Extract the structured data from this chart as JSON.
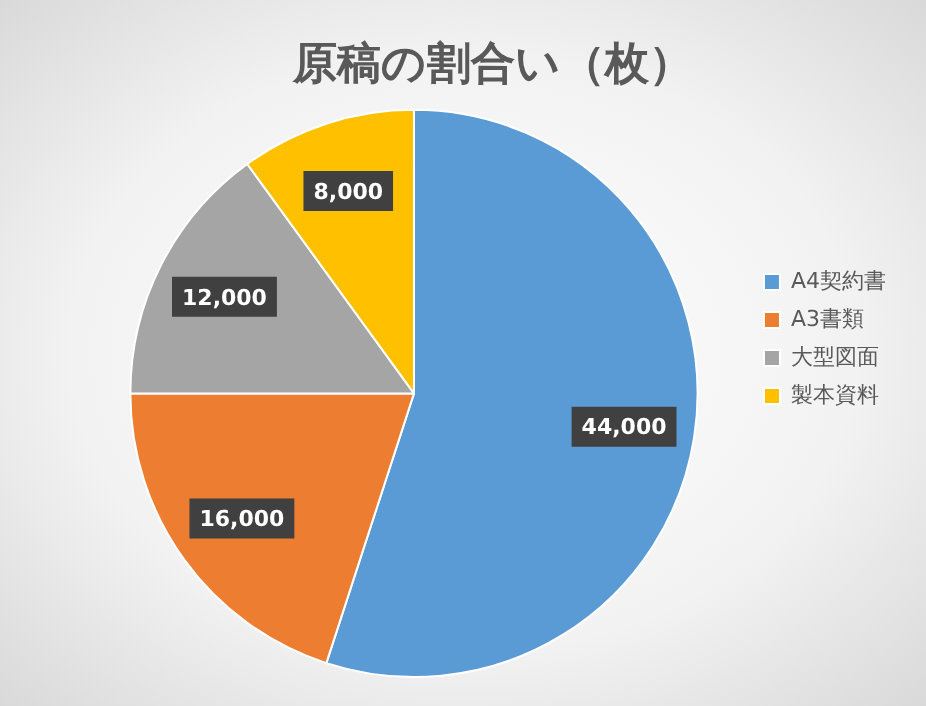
{
  "chart_data": {
    "type": "pie",
    "title": "原稿の割合い（枚）",
    "categories": [
      "A4契約書",
      "A3書類",
      "大型図面",
      "製本資料"
    ],
    "values": [
      44000,
      16000,
      12000,
      8000
    ],
    "colors": [
      "#5b9bd5",
      "#ed7d31",
      "#a5a5a5",
      "#ffc000"
    ],
    "value_labels": [
      "44,000",
      "16,000",
      "12,000",
      "8,000"
    ],
    "legend": "right"
  }
}
